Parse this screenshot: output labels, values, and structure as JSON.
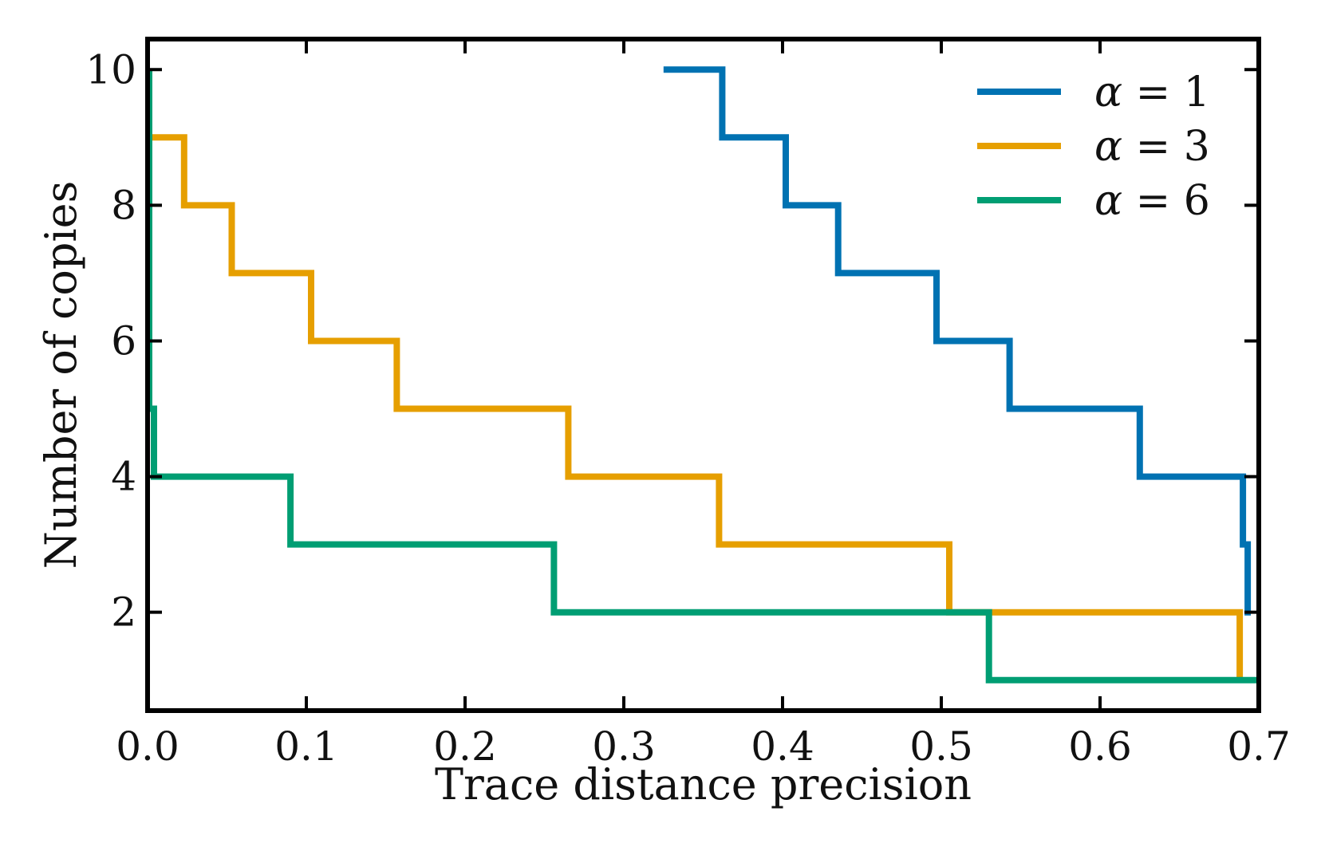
{
  "chart_data": {
    "type": "line",
    "step": true,
    "title": "",
    "xlabel": "Trace distance precision",
    "ylabel": "Number of copies",
    "xlim": [
      0.0,
      0.7
    ],
    "ylim": [
      0.55,
      10.45
    ],
    "xticks": [
      "0.0",
      "0.1",
      "0.2",
      "0.3",
      "0.4",
      "0.5",
      "0.6",
      "0.7"
    ],
    "yticks": [
      "2",
      "4",
      "6",
      "8",
      "10"
    ],
    "legend_position": "top-right",
    "series": [
      {
        "name": "α = 1",
        "legend_symbol": "α",
        "legend_rest": " = 1",
        "color": "#0072B2",
        "points": [
          [
            0.325,
            10
          ],
          [
            0.362,
            10
          ],
          [
            0.362,
            9
          ],
          [
            0.402,
            9
          ],
          [
            0.402,
            8
          ],
          [
            0.435,
            8
          ],
          [
            0.435,
            7
          ],
          [
            0.497,
            7
          ],
          [
            0.497,
            6
          ],
          [
            0.543,
            6
          ],
          [
            0.543,
            5
          ],
          [
            0.625,
            5
          ],
          [
            0.625,
            4
          ],
          [
            0.69,
            4
          ],
          [
            0.69,
            3
          ],
          [
            0.693,
            3
          ],
          [
            0.693,
            2
          ],
          [
            0.695,
            2
          ]
        ]
      },
      {
        "name": "α = 3",
        "legend_symbol": "α",
        "legend_rest": " = 3",
        "color": "#E69F00",
        "points": [
          [
            0.0,
            9
          ],
          [
            0.023,
            9
          ],
          [
            0.023,
            8
          ],
          [
            0.053,
            8
          ],
          [
            0.053,
            7
          ],
          [
            0.103,
            7
          ],
          [
            0.103,
            6
          ],
          [
            0.157,
            6
          ],
          [
            0.157,
            5
          ],
          [
            0.265,
            5
          ],
          [
            0.265,
            4
          ],
          [
            0.36,
            4
          ],
          [
            0.36,
            3
          ],
          [
            0.505,
            3
          ],
          [
            0.505,
            2
          ],
          [
            0.688,
            2
          ],
          [
            0.688,
            1
          ]
        ]
      },
      {
        "name": "α = 6",
        "legend_symbol": "α",
        "legend_rest": " = 6",
        "color": "#009E73",
        "points": [
          [
            0.001,
            10
          ],
          [
            0.001,
            5
          ],
          [
            0.004,
            5
          ],
          [
            0.004,
            4
          ],
          [
            0.09,
            4
          ],
          [
            0.09,
            3
          ],
          [
            0.256,
            3
          ],
          [
            0.256,
            2
          ],
          [
            0.53,
            2
          ],
          [
            0.53,
            1
          ],
          [
            0.7,
            1
          ]
        ]
      }
    ]
  }
}
